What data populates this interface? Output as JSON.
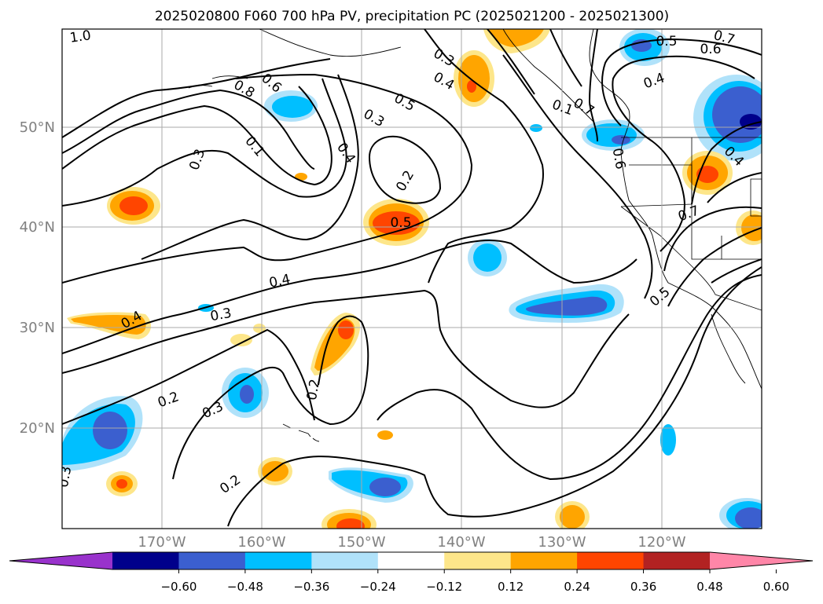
{
  "title": "2025020800 F060 700 hPa PV, precipitation PC (2025021200 - 2025021300)",
  "lat_labels": [
    "20°N",
    "30°N",
    "40°N",
    "50°N"
  ],
  "lon_labels": [
    "170°W",
    "160°W",
    "150°W",
    "140°W",
    "130°W",
    "120°W"
  ],
  "colorbar": {
    "colors": [
      "#9932cc",
      "#00008b",
      "#3b5fcf",
      "#00bfff",
      "#b0e2fa",
      "#ffffff",
      "#fde68a",
      "#ffa500",
      "#ff4500",
      "#b22222",
      "#ff86a8"
    ],
    "ticks": [
      "−0.60",
      "−0.48",
      "−0.36",
      "−0.24",
      "−0.12",
      "0.12",
      "0.24",
      "0.36",
      "0.48",
      "0.60"
    ]
  },
  "contour_labels": [
    {
      "id": "c1",
      "text": "1.0"
    },
    {
      "id": "c2",
      "text": "0.8"
    },
    {
      "id": "c3",
      "text": "0.6"
    },
    {
      "id": "c4",
      "text": "0.3"
    },
    {
      "id": "c5",
      "text": "0.1"
    },
    {
      "id": "c6",
      "text": "0.4"
    },
    {
      "id": "c7",
      "text": "0.3"
    },
    {
      "id": "c8",
      "text": "0.5"
    },
    {
      "id": "c9",
      "text": "0.2"
    },
    {
      "id": "c10",
      "text": "0.5"
    },
    {
      "id": "c11",
      "text": "0.3"
    },
    {
      "id": "c12",
      "text": "0.4"
    },
    {
      "id": "c13",
      "text": "0.7"
    },
    {
      "id": "c14",
      "text": "0.5"
    },
    {
      "id": "c15",
      "text": "0.6"
    },
    {
      "id": "c16",
      "text": "0.4"
    },
    {
      "id": "c17",
      "text": "0.7"
    },
    {
      "id": "c18",
      "text": "0.4"
    },
    {
      "id": "c19",
      "text": "0.7"
    },
    {
      "id": "c20",
      "text": "0.4"
    },
    {
      "id": "c21",
      "text": "0.3"
    },
    {
      "id": "c22",
      "text": "0.4"
    },
    {
      "id": "c23",
      "text": "0.5"
    },
    {
      "id": "c24",
      "text": "0.2"
    },
    {
      "id": "c25",
      "text": "0.3"
    },
    {
      "id": "c26",
      "text": "0.2"
    },
    {
      "id": "c27",
      "text": "0.2"
    },
    {
      "id": "c28",
      "text": "0.3"
    },
    {
      "id": "c29",
      "text": "0.6"
    },
    {
      "id": "c30",
      "text": "0.1"
    }
  ]
}
